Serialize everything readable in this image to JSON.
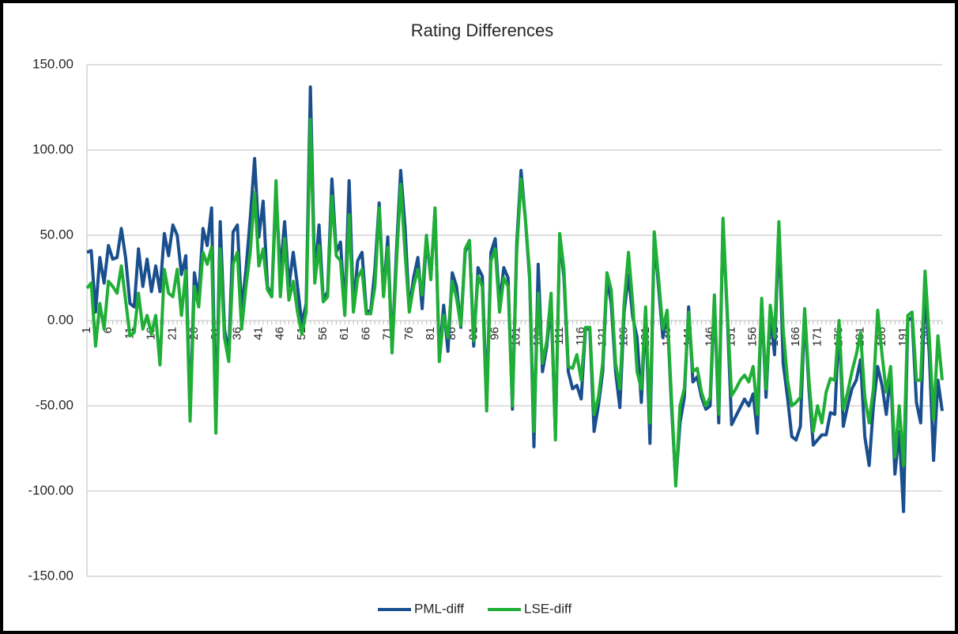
{
  "chart_data": {
    "type": "line",
    "title": "Rating Differences",
    "categories": [
      "1",
      null,
      null,
      null,
      null,
      "6",
      null,
      null,
      null,
      null,
      "11",
      null,
      null,
      null,
      null,
      "16",
      null,
      null,
      null,
      null,
      "21",
      null,
      null,
      null,
      null,
      "26",
      null,
      null,
      null,
      null,
      "31",
      null,
      null,
      null,
      null,
      "36",
      null,
      null,
      null,
      null,
      "41",
      null,
      null,
      null,
      null,
      "46",
      null,
      null,
      null,
      null,
      "51",
      null,
      null,
      null,
      null,
      "56",
      null,
      null,
      null,
      null,
      "61",
      null,
      null,
      null,
      null,
      "66",
      null,
      null,
      null,
      null,
      "71",
      null,
      null,
      null,
      null,
      "76",
      null,
      null,
      null,
      null,
      "81",
      null,
      null,
      null,
      null,
      "86",
      null,
      null,
      null,
      null,
      "91",
      null,
      null,
      null,
      null,
      "96",
      null,
      null,
      null,
      null,
      "101",
      null,
      null,
      null,
      null,
      "106",
      null,
      null,
      null,
      null,
      "111",
      null,
      null,
      null,
      null,
      "116",
      null,
      null,
      null,
      null,
      "121",
      null,
      null,
      null,
      null,
      "126",
      null,
      null,
      null,
      null,
      "131",
      null,
      null,
      null,
      null,
      "136",
      null,
      null,
      null,
      null,
      "141",
      null,
      null,
      null,
      null,
      "146",
      null,
      null,
      null,
      null,
      "151",
      null,
      null,
      null,
      null,
      "156",
      null,
      null,
      null,
      null,
      "161",
      null,
      null,
      null,
      null,
      "166",
      null,
      null,
      null,
      null,
      "171",
      null,
      null,
      null,
      null,
      "176",
      null,
      null,
      null,
      null,
      "181",
      null,
      null,
      null,
      null,
      "186",
      null,
      null,
      null,
      null,
      "191",
      null,
      null,
      null,
      null,
      "196",
      null,
      null,
      null,
      null
    ],
    "series": [
      {
        "name": "PML-diff",
        "color": "#1a4f8e",
        "values": [
          40,
          41,
          5,
          37,
          22,
          44,
          36,
          37,
          54,
          37,
          10,
          8,
          42,
          20,
          36,
          17,
          32,
          17,
          51,
          38,
          56,
          50,
          27,
          38,
          -56,
          28,
          13,
          54,
          44,
          66,
          -62,
          58,
          -5,
          -20,
          52,
          56,
          6,
          30,
          60,
          95,
          49,
          70,
          20,
          14,
          75,
          28,
          58,
          20,
          40,
          20,
          -2,
          10,
          137,
          25,
          56,
          12,
          17,
          83,
          40,
          46,
          5,
          82,
          8,
          35,
          40,
          6,
          5,
          30,
          69,
          15,
          49,
          -18,
          40,
          88,
          55,
          6,
          25,
          37,
          7,
          48,
          25,
          65,
          -22,
          9,
          -18,
          28,
          20,
          -4,
          40,
          47,
          -15,
          31,
          26,
          -48,
          40,
          48,
          10,
          31,
          25,
          -52,
          45,
          88,
          60,
          25,
          -74,
          33,
          -30,
          -15,
          10,
          -68,
          50,
          25,
          -30,
          -40,
          -38,
          -46,
          -5,
          -5,
          -65,
          -50,
          -30,
          25,
          10,
          -30,
          -51,
          5,
          27,
          2,
          -10,
          -48,
          5,
          -72,
          50,
          20,
          -10,
          5,
          -50,
          -95,
          -60,
          -45,
          8,
          -36,
          -33,
          -45,
          -52,
          -50,
          13,
          -60,
          58,
          3,
          -61,
          -56,
          -51,
          -46,
          -50,
          -43,
          -66,
          12,
          -45,
          5,
          -20,
          55,
          -25,
          -45,
          -68,
          -70,
          -62,
          5,
          -40,
          -73,
          -70,
          -67,
          -67,
          -54,
          -55,
          -2,
          -62,
          -50,
          -40,
          -35,
          -23,
          -68,
          -85,
          -50,
          -27,
          -38,
          -55,
          -30,
          -90,
          -65,
          -112,
          0,
          2,
          -48,
          -60,
          20,
          -20,
          -82,
          -35,
          -53
        ]
      },
      {
        "name": "LSE-diff",
        "color": "#1fae36",
        "values": [
          19,
          22,
          -15,
          10,
          -5,
          23,
          20,
          16,
          32,
          12,
          -9,
          -7,
          16,
          -5,
          3,
          -8,
          3,
          -26,
          30,
          16,
          14,
          30,
          3,
          29,
          -59,
          20,
          8,
          40,
          33,
          43,
          -66,
          42,
          -10,
          -24,
          33,
          40,
          -5,
          20,
          40,
          75,
          32,
          42,
          18,
          14,
          82,
          14,
          48,
          12,
          23,
          5,
          -8,
          5,
          118,
          22,
          44,
          11,
          14,
          73,
          38,
          35,
          3,
          62,
          5,
          25,
          30,
          4,
          4,
          20,
          66,
          14,
          43,
          -19,
          33,
          80,
          40,
          5,
          20,
          30,
          15,
          50,
          24,
          66,
          -24,
          3,
          -10,
          23,
          13,
          -3,
          42,
          47,
          -12,
          26,
          20,
          -53,
          35,
          42,
          5,
          25,
          20,
          -50,
          40,
          83,
          60,
          28,
          -65,
          16,
          -25,
          -12,
          16,
          -70,
          51,
          30,
          -27,
          -28,
          -20,
          -35,
          -4,
          -4,
          -55,
          -45,
          -25,
          28,
          18,
          -25,
          -40,
          10,
          40,
          10,
          -30,
          -40,
          8,
          -60,
          52,
          25,
          -5,
          6,
          -45,
          -97,
          -50,
          -40,
          5,
          -30,
          -28,
          -42,
          -50,
          -45,
          15,
          -55,
          60,
          5,
          -44,
          -40,
          -35,
          -32,
          -36,
          -27,
          -55,
          13,
          -40,
          9,
          -10,
          58,
          -5,
          -35,
          -50,
          -48,
          -45,
          7,
          -35,
          -65,
          -50,
          -60,
          -42,
          -34,
          -35,
          0,
          -52,
          -42,
          -30,
          -20,
          -7,
          -45,
          -60,
          -40,
          6,
          -20,
          -42,
          -27,
          -80,
          -50,
          -85,
          3,
          5,
          -35,
          -35,
          29,
          -10,
          -58,
          -9,
          -35
        ]
      }
    ],
    "ylim": [
      -150,
      150
    ],
    "yticks": [
      {
        "value": -150,
        "label": "-150.00"
      },
      {
        "value": -100,
        "label": "-100.00"
      },
      {
        "value": -50,
        "label": "-50.00"
      },
      {
        "value": 0,
        "label": "0.00"
      },
      {
        "value": 50,
        "label": "50.00"
      },
      {
        "value": 100,
        "label": "100.00"
      },
      {
        "value": 150,
        "label": "150.00"
      }
    ],
    "grid": true,
    "legend": "bottom"
  }
}
